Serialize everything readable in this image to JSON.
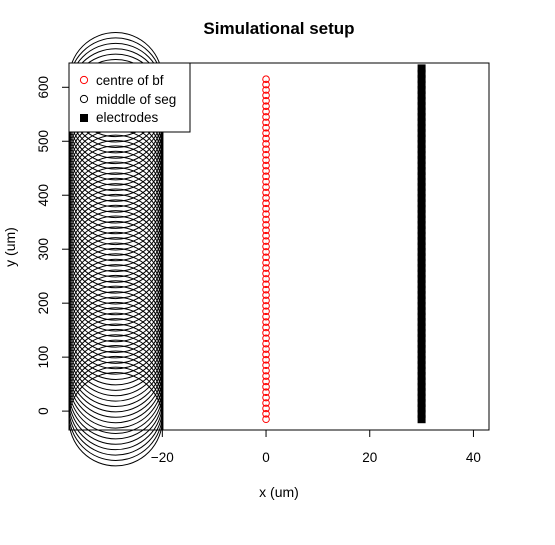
{
  "chart_data": {
    "type": "scatter",
    "title": "Simulational setup",
    "xlabel": "x (um)",
    "ylabel": "y (um)",
    "xlim": [
      -38,
      43
    ],
    "ylim": [
      -35,
      645
    ],
    "x_ticks": [
      -20,
      0,
      20,
      40
    ],
    "x_tick_labels": [
      "−20",
      "0",
      "20",
      "40"
    ],
    "y_ticks": [
      0,
      100,
      200,
      300,
      400,
      500,
      600
    ],
    "y_tick_labels": [
      "0",
      "100",
      "200",
      "300",
      "400",
      "500",
      "600"
    ],
    "grid": false,
    "legend_position": "top-left",
    "legend": [
      {
        "label": "centre of bf",
        "marker": "open-circle",
        "color": "#ff0000"
      },
      {
        "label": "middle of seg",
        "marker": "open-circle",
        "color": "#000000"
      },
      {
        "label": "electrodes",
        "marker": "filled-square",
        "color": "#000000"
      }
    ],
    "series": [
      {
        "name": "centre of bf",
        "marker": "open-circle",
        "color": "#ff0000",
        "x": 0,
        "y": [
          -15,
          -5,
          5,
          15,
          25,
          35,
          45,
          55,
          65,
          75,
          85,
          95,
          105,
          115,
          125,
          135,
          145,
          155,
          165,
          175,
          185,
          195,
          205,
          215,
          225,
          235,
          245,
          255,
          265,
          275,
          285,
          295,
          305,
          315,
          325,
          335,
          345,
          355,
          365,
          375,
          385,
          395,
          405,
          415,
          425,
          435,
          445,
          455,
          465,
          475,
          485,
          495,
          505,
          515,
          525,
          535,
          545,
          555,
          565,
          575,
          585,
          595,
          605,
          615
        ]
      },
      {
        "name": "middle of seg",
        "marker": "open-circle",
        "color": "#000000",
        "x_center": -29,
        "radius": 9,
        "y": [
          -15,
          -5,
          5,
          15,
          25,
          35,
          45,
          55,
          65,
          75,
          85,
          95,
          105,
          115,
          125,
          135,
          145,
          155,
          165,
          175,
          185,
          195,
          205,
          215,
          225,
          235,
          245,
          255,
          265,
          275,
          285,
          295,
          305,
          315,
          325,
          335,
          345,
          355,
          365,
          375,
          385,
          395,
          405,
          415,
          425,
          435,
          445,
          455,
          465,
          475,
          485,
          495,
          505,
          515,
          525,
          535,
          545,
          555,
          565,
          575,
          585,
          595,
          605,
          615
        ]
      },
      {
        "name": "electrodes",
        "marker": "filled-square",
        "color": "#000000",
        "x": 30,
        "y": [
          -15,
          -5,
          5,
          15,
          25,
          35,
          45,
          55,
          65,
          75,
          85,
          95,
          105,
          115,
          125,
          135,
          145,
          155,
          165,
          175,
          185,
          195,
          205,
          215,
          225,
          235,
          245,
          255,
          265,
          275,
          285,
          295,
          305,
          315,
          325,
          335,
          345,
          355,
          365,
          375,
          385,
          395,
          405,
          415,
          425,
          435,
          445,
          455,
          465,
          475,
          485,
          495,
          505,
          515,
          525,
          535,
          545,
          555,
          565,
          575,
          585,
          595,
          605,
          615,
          625,
          635
        ]
      }
    ],
    "reference_line_x": -20
  }
}
